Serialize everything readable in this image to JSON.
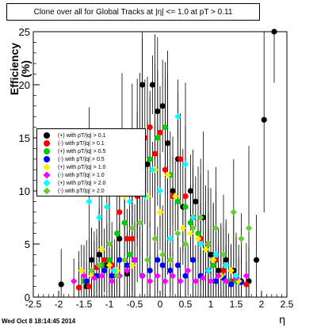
{
  "title": "Clone  over all for Global Tracks at |η| <= 1.0 at pT > 0.11",
  "timestamp": "Wed Oct  8 18:14:45 2014",
  "chart_data": {
    "type": "scatter",
    "xlabel": "η",
    "ylabel": "Efficiency (%)",
    "xlim": [
      -2.5,
      2.5
    ],
    "ylim": [
      0,
      25
    ],
    "x_ticks": [
      "-2.5",
      "-2",
      "-1.5",
      "-1",
      "-0.5",
      "0",
      "0.5",
      "1",
      "1.5",
      "2",
      "2.5"
    ],
    "y_ticks": [
      "0",
      "5",
      "10",
      "15",
      "20",
      "25"
    ],
    "grid": false,
    "legend_position": "middle-left",
    "series": [
      {
        "name": "(+) with pT/|q| > 0.1",
        "color": "#000000",
        "marker": "circle",
        "points": [
          [
            -1.95,
            1.2
          ],
          [
            -1.6,
            0.9
          ],
          [
            -1.45,
            1.0
          ],
          [
            -1.35,
            3.5
          ],
          [
            -1.2,
            4.0
          ],
          [
            -1.05,
            3.0
          ],
          [
            -0.95,
            3.0
          ],
          [
            -0.8,
            5.5
          ],
          [
            -0.65,
            2.2
          ],
          [
            -0.55,
            14.0
          ],
          [
            -0.45,
            11.0
          ],
          [
            -0.35,
            20.0
          ],
          [
            -0.25,
            12.5
          ],
          [
            -0.15,
            20.0
          ],
          [
            -0.05,
            17.5
          ],
          [
            0.05,
            18.0
          ],
          [
            0.15,
            14.5
          ],
          [
            0.25,
            10.0
          ],
          [
            0.35,
            13.0
          ],
          [
            0.45,
            8.5
          ],
          [
            0.6,
            10.0
          ],
          [
            0.7,
            9.0
          ],
          [
            0.85,
            7.5
          ],
          [
            1.0,
            4.0
          ],
          [
            1.15,
            2.5
          ],
          [
            1.3,
            3.5
          ],
          [
            1.45,
            2.5
          ],
          [
            1.6,
            1.5
          ],
          [
            1.75,
            1.5
          ],
          [
            1.9,
            3.5
          ],
          [
            2.05,
            16.7
          ],
          [
            2.25,
            25.0
          ]
        ]
      },
      {
        "name": "(-) with pT/|q| > 0.1",
        "color": "#ff0000",
        "marker": "circle",
        "points": [
          [
            -1.6,
            0.9
          ],
          [
            -1.4,
            1.0
          ],
          [
            -1.25,
            2.8
          ],
          [
            -1.1,
            3.5
          ],
          [
            -0.95,
            3.0
          ],
          [
            -0.8,
            8.0
          ],
          [
            -0.65,
            5.5
          ],
          [
            -0.55,
            5.5
          ],
          [
            -0.45,
            9.5
          ],
          [
            -0.3,
            15.0
          ],
          [
            -0.2,
            16.0
          ],
          [
            -0.1,
            13.5
          ],
          [
            0.0,
            15.5
          ],
          [
            0.1,
            12.0
          ],
          [
            0.25,
            9.5
          ],
          [
            0.4,
            13.0
          ],
          [
            0.5,
            9.5
          ],
          [
            0.65,
            7.5
          ],
          [
            0.8,
            5.5
          ],
          [
            0.95,
            5.0
          ],
          [
            1.1,
            3.5
          ],
          [
            1.25,
            2.5
          ],
          [
            1.4,
            1.5
          ],
          [
            1.55,
            1.5
          ],
          [
            1.7,
            1.2
          ]
        ]
      },
      {
        "name": "(+) with pT/|q| > 0.5",
        "color": "#00cc00",
        "marker": "circle",
        "points": [
          [
            -1.5,
            1.5
          ],
          [
            -1.3,
            2.0
          ],
          [
            -1.15,
            3.0
          ],
          [
            -1.0,
            3.5
          ],
          [
            -0.85,
            6.0
          ],
          [
            -0.7,
            7.0
          ],
          [
            -0.6,
            4.0
          ],
          [
            -0.45,
            11.5
          ],
          [
            -0.35,
            14.0
          ],
          [
            -0.2,
            13.0
          ],
          [
            -0.05,
            15.0
          ],
          [
            0.1,
            16.0
          ],
          [
            0.2,
            11.5
          ],
          [
            0.35,
            9.0
          ],
          [
            0.5,
            8.5
          ],
          [
            0.6,
            7.0
          ],
          [
            0.75,
            6.0
          ],
          [
            0.9,
            4.5
          ],
          [
            1.05,
            3.0
          ],
          [
            1.2,
            2.0
          ],
          [
            1.35,
            1.5
          ],
          [
            1.5,
            1.5
          ]
        ]
      },
      {
        "name": "(-) with pT/|q| > 0.5",
        "color": "#0000ff",
        "marker": "circle",
        "points": [
          [
            -1.45,
            1.5
          ],
          [
            -1.25,
            2.0
          ],
          [
            -1.1,
            2.5
          ],
          [
            -0.95,
            2.0
          ],
          [
            -0.8,
            3.5
          ],
          [
            -0.65,
            3.0
          ],
          [
            -0.5,
            3.5
          ],
          [
            -0.35,
            2.0
          ],
          [
            -0.2,
            2.5
          ],
          [
            -0.05,
            3.5
          ],
          [
            0.05,
            3.0
          ],
          [
            0.2,
            2.5
          ],
          [
            0.35,
            3.0
          ],
          [
            0.5,
            2.0
          ],
          [
            0.65,
            3.5
          ],
          [
            0.8,
            2.0
          ],
          [
            0.95,
            2.5
          ],
          [
            1.1,
            1.5
          ],
          [
            1.25,
            1.8
          ],
          [
            1.4,
            1.2
          ],
          [
            1.6,
            1.4
          ]
        ]
      },
      {
        "name": "(+) with pT/|q| > 1.0",
        "color": "#ffee00",
        "marker": "diamond",
        "points": [
          [
            -1.55,
            2.5
          ],
          [
            -1.35,
            2.0
          ],
          [
            -1.15,
            4.5
          ],
          [
            -1.0,
            3.0
          ],
          [
            -0.85,
            2.5
          ],
          [
            -0.7,
            9.5
          ],
          [
            -0.55,
            3.0
          ],
          [
            -0.4,
            12.5
          ],
          [
            -0.25,
            9.5
          ],
          [
            -0.1,
            12.0
          ],
          [
            0.0,
            8.0
          ],
          [
            0.15,
            11.5
          ],
          [
            0.3,
            9.5
          ],
          [
            0.45,
            6.5
          ],
          [
            0.6,
            6.0
          ],
          [
            0.75,
            5.5
          ],
          [
            0.9,
            4.5
          ],
          [
            1.05,
            3.5
          ],
          [
            1.2,
            2.0
          ],
          [
            1.4,
            2.5
          ],
          [
            1.55,
            1.5
          ]
        ]
      },
      {
        "name": "(-) with pT/|q| > 1.0",
        "color": "#ff00ff",
        "marker": "diamond",
        "points": [
          [
            -1.7,
            1.5
          ],
          [
            -1.5,
            2.0
          ],
          [
            -1.3,
            1.8
          ],
          [
            -1.15,
            2.0
          ],
          [
            -0.95,
            1.5
          ],
          [
            -0.8,
            2.0
          ],
          [
            -0.65,
            2.5
          ],
          [
            -0.5,
            3.5
          ],
          [
            -0.35,
            2.0
          ],
          [
            -0.2,
            1.5
          ],
          [
            -0.05,
            2.0
          ],
          [
            0.1,
            1.5
          ],
          [
            0.25,
            2.0
          ],
          [
            0.4,
            1.5
          ],
          [
            0.55,
            2.5
          ],
          [
            0.7,
            1.5
          ],
          [
            0.85,
            1.8
          ],
          [
            1.0,
            1.5
          ],
          [
            1.15,
            2.0
          ],
          [
            1.3,
            1.5
          ],
          [
            1.5,
            1.8
          ],
          [
            1.7,
            2.0
          ]
        ]
      },
      {
        "name": "(+) with pT/|q| > 2.0",
        "color": "#00ffff",
        "marker": "diamond",
        "points": [
          [
            -1.4,
            9.0
          ],
          [
            -1.2,
            7.5
          ],
          [
            -1.05,
            8.5
          ],
          [
            -0.9,
            2.5
          ],
          [
            -0.75,
            15.5
          ],
          [
            -0.6,
            9.0
          ],
          [
            -0.45,
            11.0
          ],
          [
            -0.3,
            9.5
          ],
          [
            -0.15,
            12.0
          ],
          [
            0.0,
            10.0
          ],
          [
            0.2,
            5.5
          ],
          [
            0.35,
            17.0
          ],
          [
            0.5,
            12.5
          ],
          [
            0.65,
            7.5
          ],
          [
            0.8,
            5.0
          ],
          [
            0.95,
            2.5
          ],
          [
            1.1,
            4.0
          ],
          [
            1.3,
            3.0
          ],
          [
            1.5,
            2.0
          ]
        ]
      },
      {
        "name": "(-) with pT/|q| > 2.0",
        "color": "#66cc33",
        "marker": "diamond",
        "points": [
          [
            -1.35,
            2.5
          ],
          [
            -1.2,
            3.0
          ],
          [
            -1.0,
            5.0
          ],
          [
            -0.85,
            2.0
          ],
          [
            -0.7,
            3.5
          ],
          [
            -0.55,
            6.5
          ],
          [
            -0.4,
            7.0
          ],
          [
            -0.25,
            3.5
          ],
          [
            -0.1,
            5.5
          ],
          [
            0.05,
            4.0
          ],
          [
            0.2,
            3.5
          ],
          [
            0.35,
            6.0
          ],
          [
            0.5,
            5.0
          ],
          [
            0.65,
            6.5
          ],
          [
            0.8,
            7.5
          ],
          [
            0.95,
            5.0
          ],
          [
            1.1,
            6.5
          ],
          [
            1.25,
            4.0
          ],
          [
            1.45,
            8.0
          ],
          [
            1.6,
            5.5
          ],
          [
            1.75,
            6.5
          ]
        ]
      }
    ]
  }
}
